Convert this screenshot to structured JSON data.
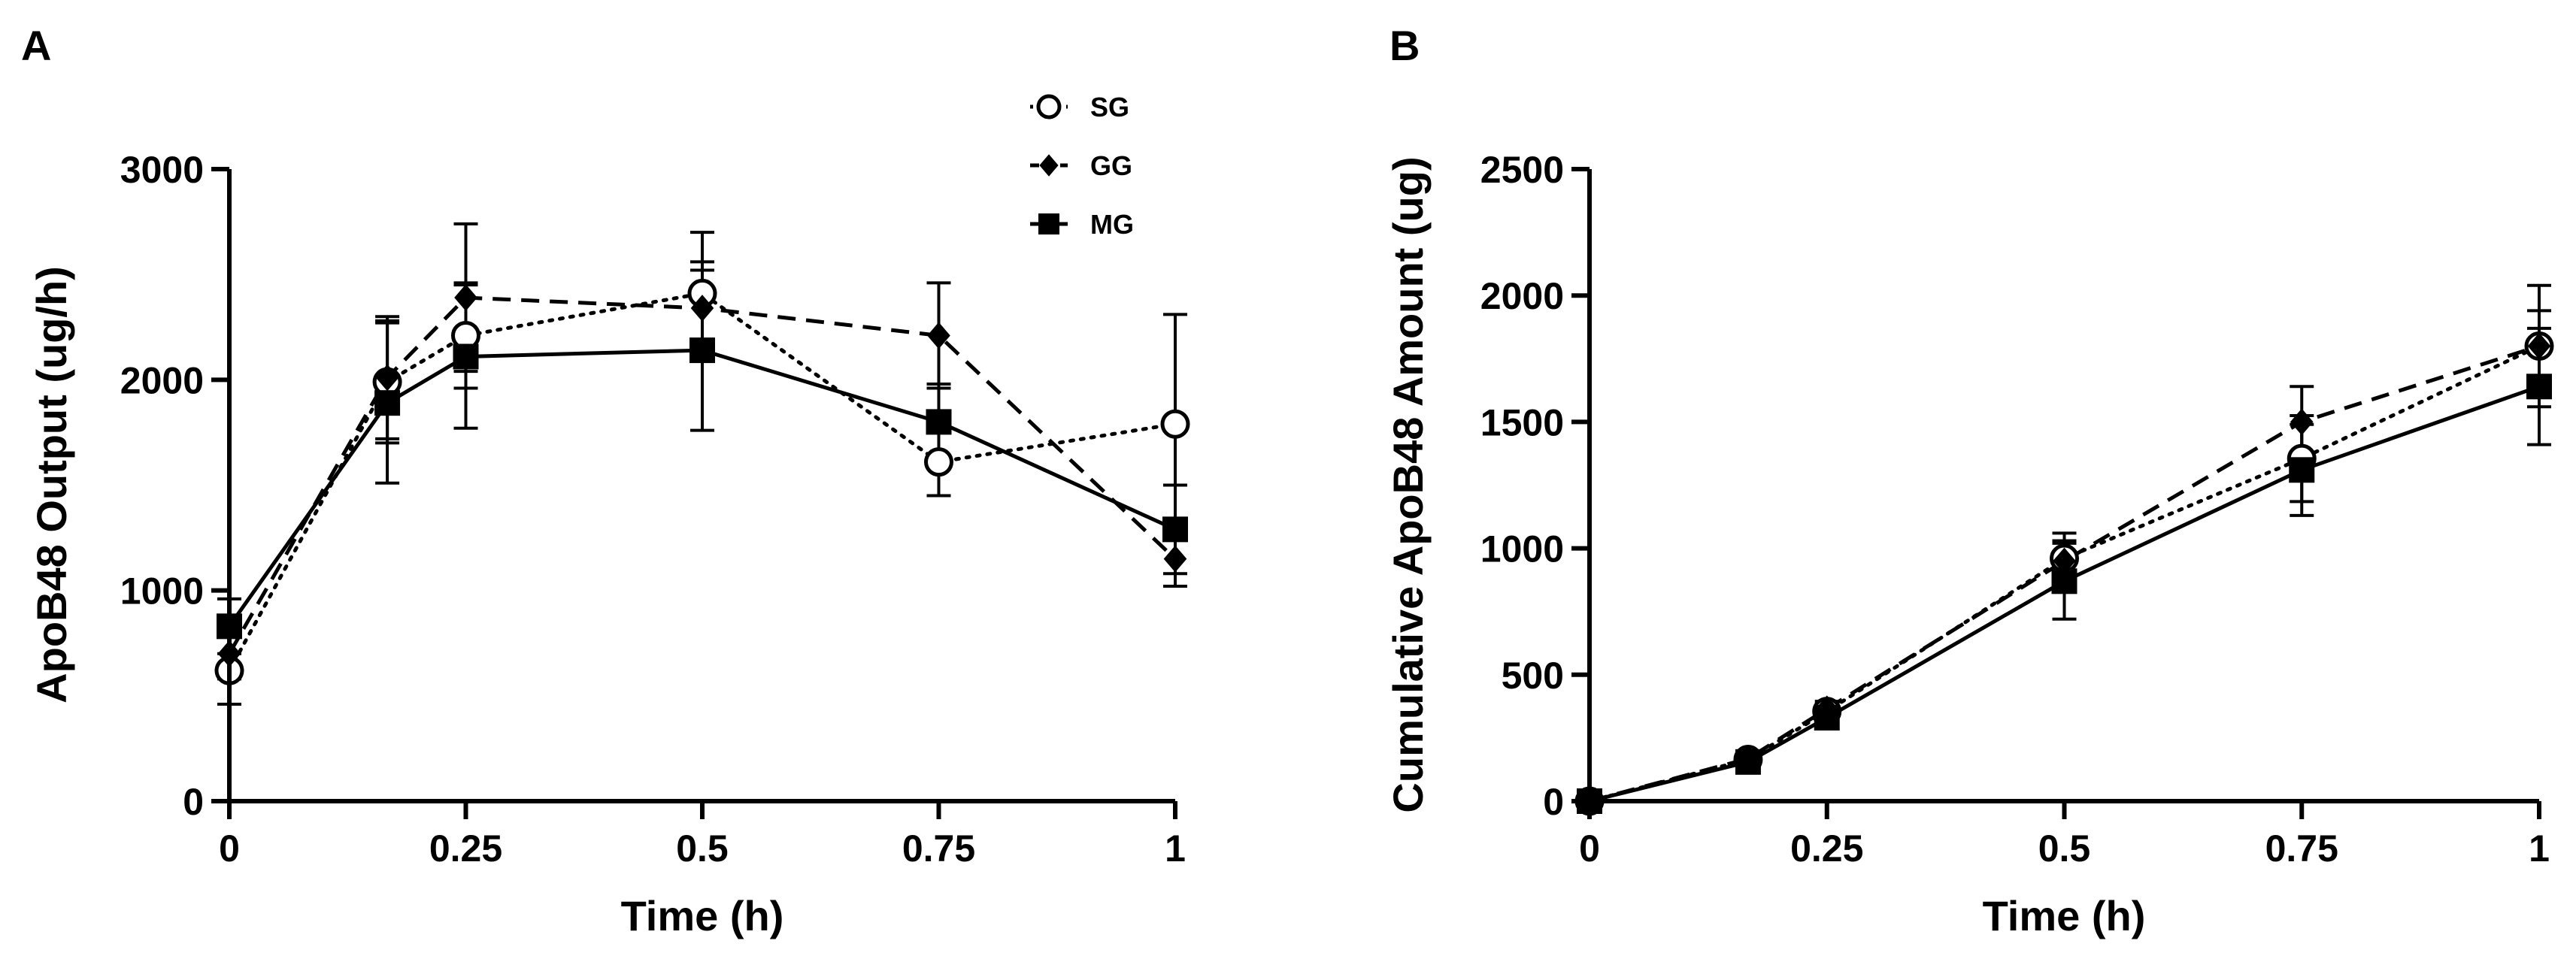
{
  "chart_data": [
    {
      "panel_label": "A",
      "type": "line",
      "xlabel": "Time (h)",
      "ylabel": "ApoB48 Output (ug/h)",
      "xlim": [
        0,
        1
      ],
      "ylim": [
        0,
        3000
      ],
      "x_ticks": [
        0,
        0.25,
        0.5,
        0.75,
        1
      ],
      "x_tick_labels": [
        "0",
        "0.25",
        "0.5",
        "0.75",
        "1"
      ],
      "y_ticks": [
        0,
        1000,
        2000,
        3000
      ],
      "y_tick_labels": [
        "0",
        "1000",
        "2000",
        "3000"
      ],
      "legend": {
        "position": "top-right",
        "entries": [
          "SG",
          "GG",
          "MG"
        ]
      },
      "series": [
        {
          "name": "SG",
          "marker": "open-circle",
          "line": "dotted",
          "x": [
            0,
            0.167,
            0.25,
            0.5,
            0.75,
            1
          ],
          "values": [
            620,
            1990,
            2210,
            2410,
            1610,
            1790
          ],
          "errors": [
            160,
            290,
            250,
            290,
            160,
            520
          ]
        },
        {
          "name": "GG",
          "marker": "diamond",
          "line": "dashed",
          "x": [
            0,
            0.167,
            0.25,
            0.5,
            0.75,
            1
          ],
          "values": [
            700,
            2010,
            2390,
            2340,
            2210,
            1150
          ],
          "errors": [
            120,
            290,
            350,
            220,
            250,
            130
          ]
        },
        {
          "name": "MG",
          "marker": "square",
          "line": "solid",
          "x": [
            0,
            0.167,
            0.25,
            0.5,
            0.75,
            1
          ],
          "values": [
            830,
            1890,
            2110,
            2140,
            1800,
            1290
          ],
          "errors": [
            130,
            380,
            340,
            380,
            180,
            210
          ]
        }
      ]
    },
    {
      "panel_label": "B",
      "type": "line",
      "xlabel": "Time (h)",
      "ylabel": "Cumulative ApoB48 Amount (ug)",
      "xlim": [
        0,
        1
      ],
      "ylim": [
        0,
        2500
      ],
      "x_ticks": [
        0,
        0.25,
        0.5,
        0.75,
        1
      ],
      "x_tick_labels": [
        "0",
        "0.25",
        "0.5",
        "0.75",
        "1"
      ],
      "y_ticks": [
        0,
        500,
        1000,
        1500,
        2000,
        2500
      ],
      "y_tick_labels": [
        "0",
        "500",
        "1000",
        "1500",
        "2000",
        "2500"
      ],
      "legend": null,
      "series": [
        {
          "name": "SG",
          "marker": "open-circle",
          "line": "dotted",
          "x": [
            0,
            0.167,
            0.25,
            0.5,
            0.75,
            1
          ],
          "values": [
            0,
            165,
            355,
            960,
            1355,
            1800
          ],
          "errors": [
            0,
            20,
            30,
            100,
            170,
            240
          ]
        },
        {
          "name": "GG",
          "marker": "diamond",
          "line": "dashed",
          "x": [
            0,
            0.167,
            0.25,
            0.5,
            0.75,
            1
          ],
          "values": [
            0,
            168,
            365,
            950,
            1500,
            1800
          ],
          "errors": [
            0,
            20,
            30,
            80,
            140,
            140
          ]
        },
        {
          "name": "MG",
          "marker": "square",
          "line": "solid",
          "x": [
            0,
            0.167,
            0.25,
            0.5,
            0.75,
            1
          ],
          "values": [
            0,
            155,
            330,
            870,
            1310,
            1640
          ],
          "errors": [
            0,
            20,
            40,
            150,
            180,
            230
          ]
        }
      ]
    }
  ]
}
